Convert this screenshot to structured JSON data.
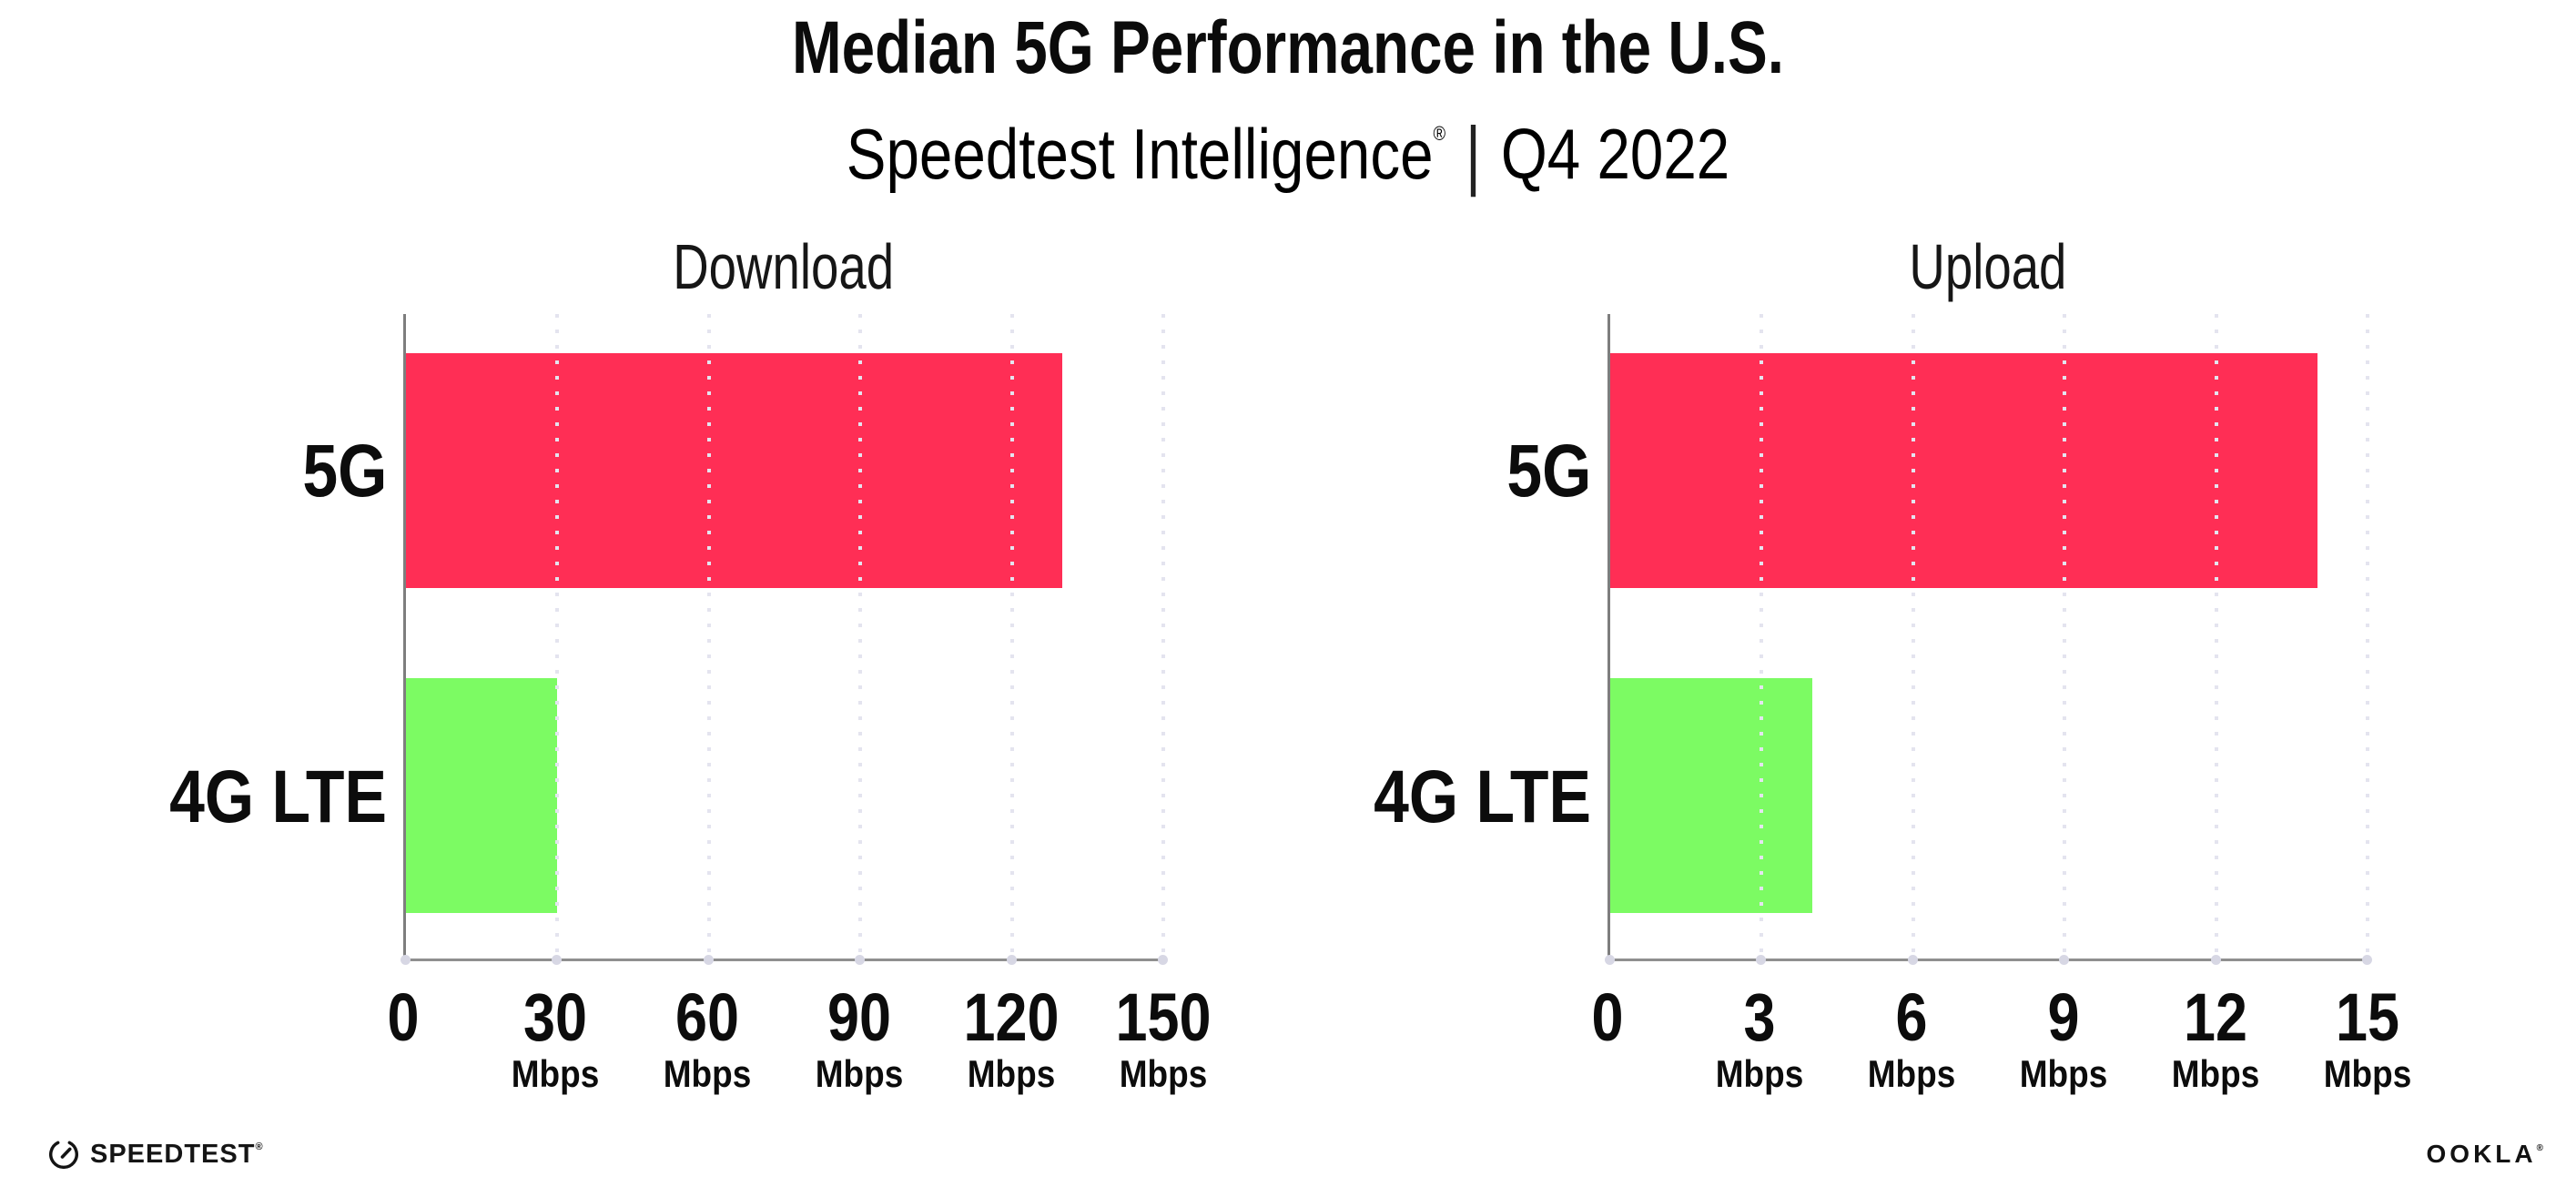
{
  "header": {
    "title": "Median 5G Performance in the U.S.",
    "subtitle_brand": "Speedtest Intelligence",
    "subtitle_reg": "®",
    "subtitle_divider": "|",
    "subtitle_period": "Q4 2022"
  },
  "colors": {
    "bar_5g": "#FF2E55",
    "bar_4g_lte": "#7CFB63",
    "gridline": "#E4E4EF",
    "axis": "#8F8F8F",
    "text": "#0C0C0C"
  },
  "chart_data": [
    {
      "type": "bar",
      "orientation": "horizontal",
      "title": "Download",
      "categories": [
        "5G",
        "4G LTE"
      ],
      "values": [
        130,
        30
      ],
      "unit": "Mbps",
      "xlim": [
        0,
        150
      ],
      "xticks": [
        0,
        30,
        60,
        90,
        120,
        150
      ],
      "bar_colors": [
        "#FF2E55",
        "#7CFB63"
      ],
      "grid": "dotted-vertical",
      "legend": "none"
    },
    {
      "type": "bar",
      "orientation": "horizontal",
      "title": "Upload",
      "categories": [
        "5G",
        "4G LTE"
      ],
      "values": [
        14,
        4
      ],
      "unit": "Mbps",
      "xlim": [
        0,
        15
      ],
      "xticks": [
        0,
        3,
        6,
        9,
        12,
        15
      ],
      "bar_colors": [
        "#FF2E55",
        "#7CFB63"
      ],
      "grid": "dotted-vertical",
      "legend": "none"
    }
  ],
  "footer": {
    "speedtest_label": "SPEEDTEST",
    "speedtest_reg": "®",
    "ookla_label": "OOKLA",
    "ookla_reg": "®"
  }
}
